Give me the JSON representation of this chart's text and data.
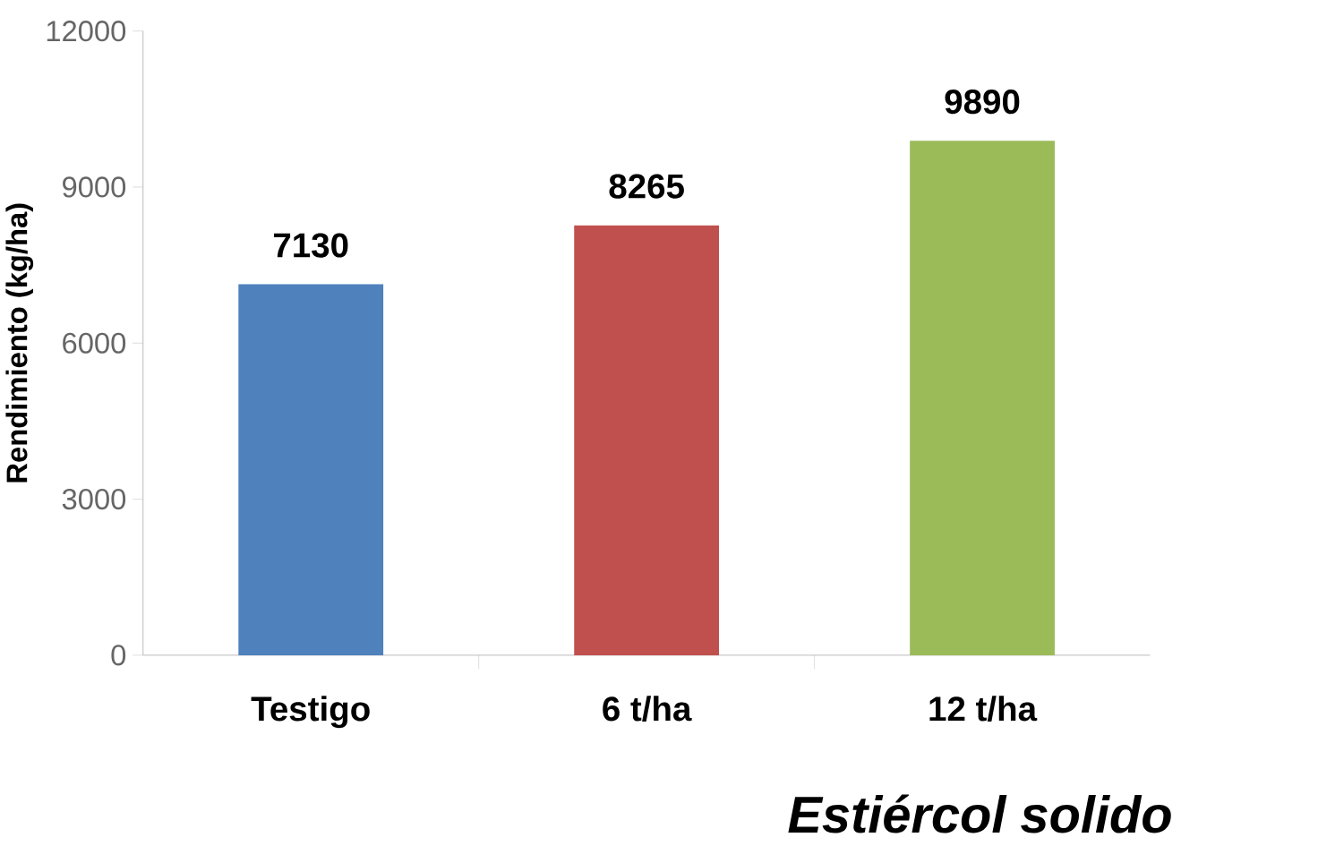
{
  "chart_data": {
    "type": "bar",
    "ylabel": "Rendimiento (kg/ha)",
    "categories": [
      "Testigo",
      "6 t/ha",
      "12 t/ha"
    ],
    "values": [
      7130,
      8265,
      9890
    ],
    "colors": [
      "#4f81bd",
      "#c0504d",
      "#9bbb59"
    ],
    "ylim": [
      0,
      12000
    ],
    "yticks": [
      0,
      3000,
      6000,
      9000,
      12000
    ],
    "data_labels": true,
    "annotations": [
      "Estiércol solido"
    ]
  }
}
